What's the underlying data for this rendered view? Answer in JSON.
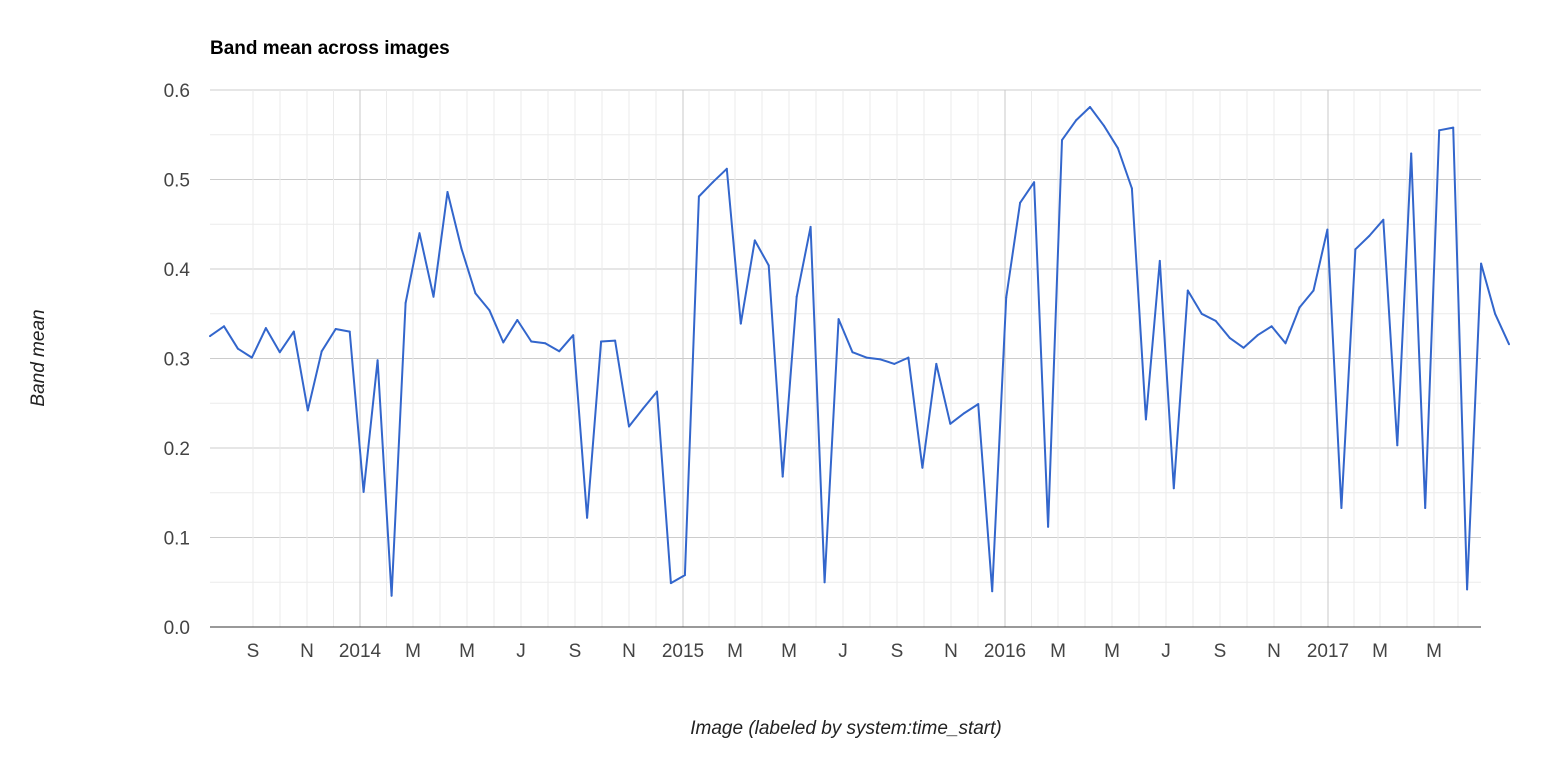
{
  "chart_data": {
    "type": "line",
    "title": "Band mean across images",
    "xlabel": "Image (labeled by system:time_start)",
    "ylabel": "Band mean",
    "ylim": [
      0,
      0.6
    ],
    "yticks": [
      "0.0",
      "0.1",
      "0.2",
      "0.3",
      "0.4",
      "0.5",
      "0.6"
    ],
    "xticks": [
      "S",
      "N",
      "2014",
      "M",
      "M",
      "J",
      "S",
      "N",
      "2015",
      "M",
      "M",
      "J",
      "S",
      "N",
      "2016",
      "M",
      "M",
      "J",
      "S",
      "N",
      "2017",
      "M",
      "M"
    ],
    "grid": true,
    "legend": "none",
    "series_color": "#3366cc",
    "series": [
      {
        "values": [
          0.325,
          0.336,
          0.311,
          0.301,
          0.334,
          0.307,
          0.33,
          0.242,
          0.308,
          0.333,
          0.33,
          0.151,
          0.298,
          0.035,
          0.362,
          0.44,
          0.369,
          0.486,
          0.423,
          0.373,
          0.354,
          0.318,
          0.343,
          0.319,
          0.317,
          0.308,
          0.326,
          0.122,
          0.319,
          0.32,
          0.224,
          0.244,
          0.263,
          0.049,
          0.058,
          0.481,
          0.497,
          0.512,
          0.339,
          0.432,
          0.404,
          0.168,
          0.369,
          0.447,
          0.05,
          0.344,
          0.307,
          0.301,
          0.299,
          0.294,
          0.301,
          0.178,
          0.294,
          0.227,
          0.239,
          0.249,
          0.04,
          0.368,
          0.474,
          0.497,
          0.112,
          0.544,
          0.566,
          0.581,
          0.56,
          0.535,
          0.49,
          0.232,
          0.409,
          0.155,
          0.376,
          0.35,
          0.342,
          0.323,
          0.312,
          0.326,
          0.336,
          0.317,
          0.357,
          0.376,
          0.444,
          0.133,
          0.422,
          0.437,
          0.455,
          0.203,
          0.529,
          0.133,
          0.555,
          0.558,
          0.042,
          0.406,
          0.35,
          0.316
        ]
      }
    ]
  }
}
